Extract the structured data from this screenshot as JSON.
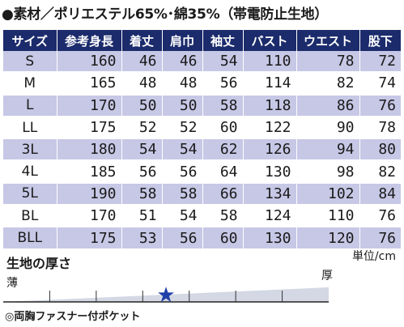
{
  "heading": "●素材／ポリエステル65%･綿35%（帯電防止生地）",
  "size_table": {
    "headers": [
      "サイズ",
      "参考身長",
      "着丈",
      "肩巾",
      "袖丈",
      "バスト",
      "ウエスト",
      "股下"
    ],
    "rows": [
      [
        "S",
        "160",
        "46",
        "46",
        "54",
        "110",
        "78",
        "72"
      ],
      [
        "M",
        "165",
        "48",
        "48",
        "56",
        "114",
        "82",
        "74"
      ],
      [
        "L",
        "170",
        "50",
        "50",
        "58",
        "118",
        "86",
        "76"
      ],
      [
        "LL",
        "175",
        "52",
        "52",
        "60",
        "122",
        "90",
        "78"
      ],
      [
        "3L",
        "180",
        "54",
        "54",
        "62",
        "126",
        "94",
        "80"
      ],
      [
        "4L",
        "185",
        "56",
        "56",
        "64",
        "130",
        "98",
        "82"
      ],
      [
        "5L",
        "190",
        "58",
        "58",
        "66",
        "134",
        "102",
        "84"
      ],
      [
        "BL",
        "170",
        "51",
        "54",
        "58",
        "124",
        "110",
        "76"
      ],
      [
        "BLL",
        "175",
        "53",
        "56",
        "60",
        "130",
        "120",
        "76"
      ]
    ]
  },
  "unit_label": "単位/cm",
  "thickness": {
    "title": "生地の厚さ",
    "thin_label": "薄",
    "thick_label": "厚",
    "marker_symbol": "★",
    "level_segment": 4,
    "segments": 7,
    "marker_color": "#1f3fa8"
  },
  "note": "◎両胸ファスナー付ポケット",
  "colors": {
    "header_bg": "#1b2b6b",
    "row_shade": "#c7c7e6",
    "scale_fill": "#d3d8e4"
  }
}
